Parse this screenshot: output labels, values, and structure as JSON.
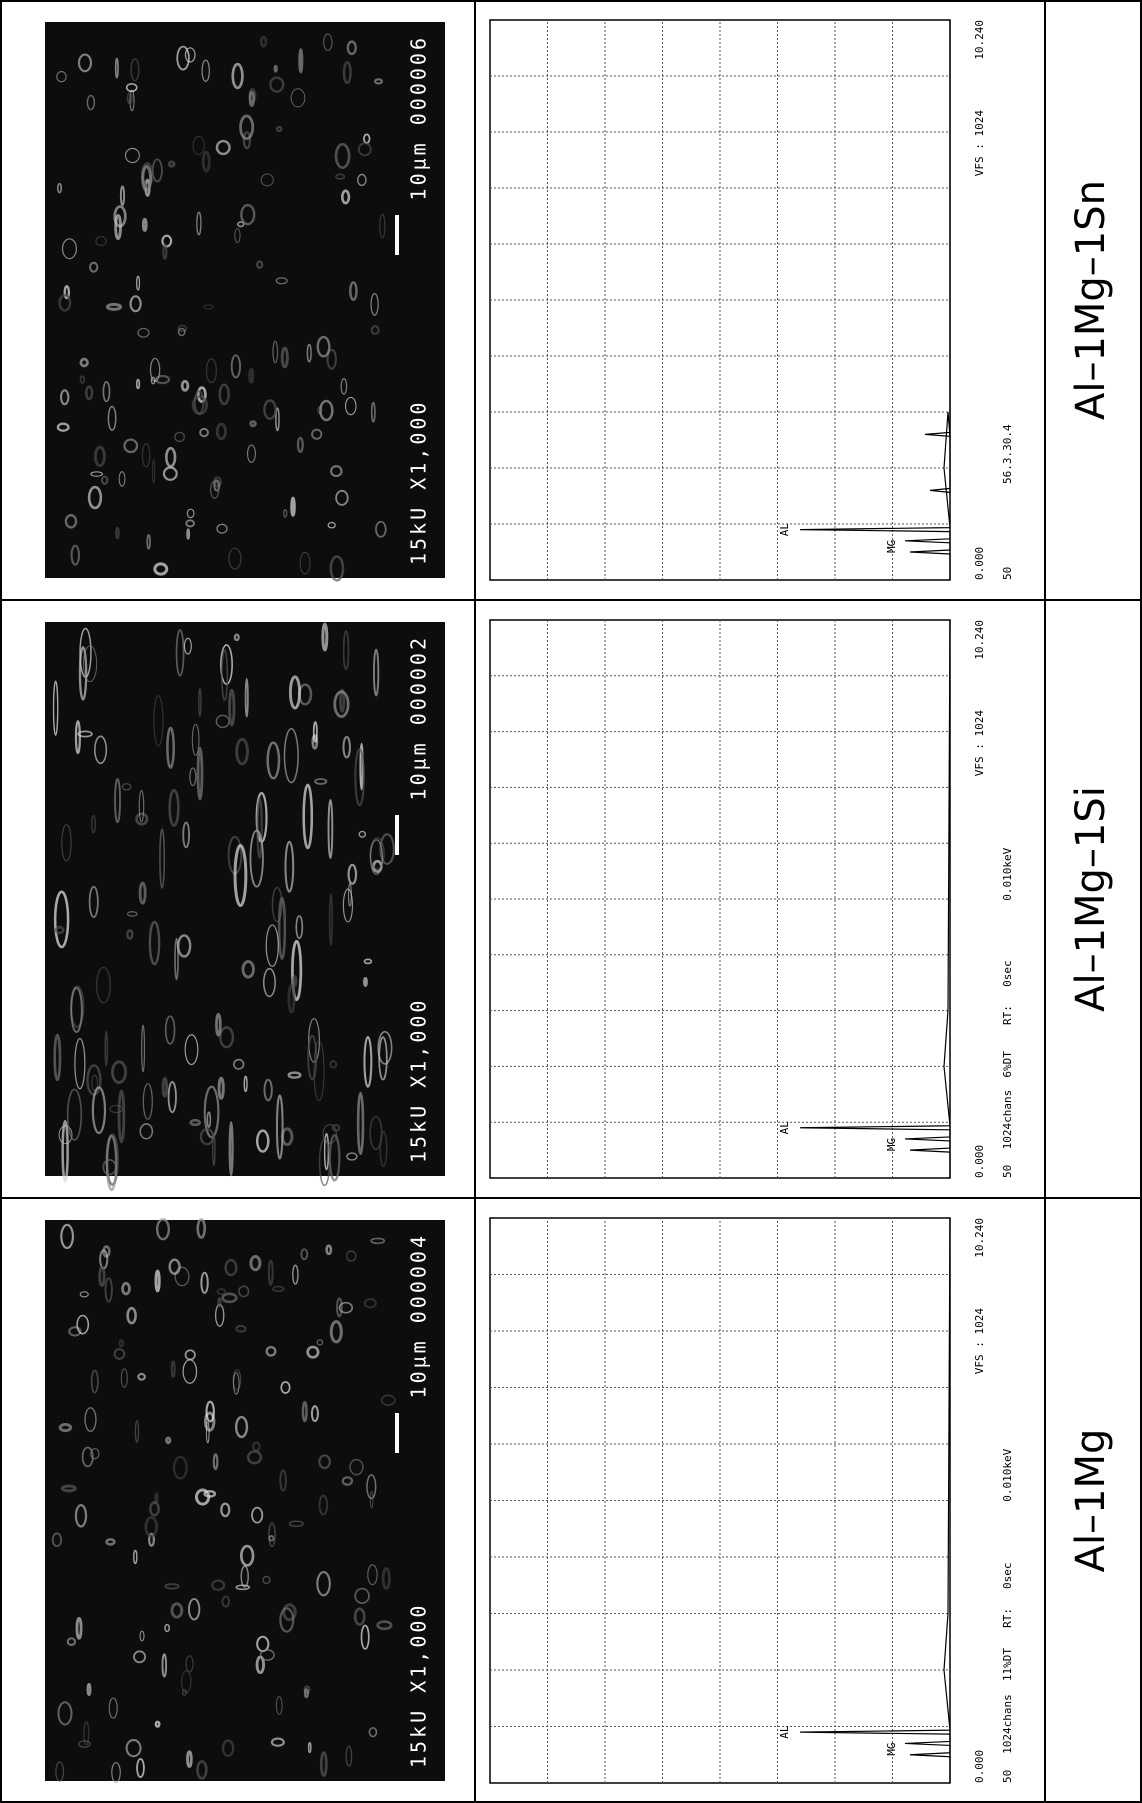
{
  "rows": [
    {
      "label": "Al–1Mg–1Sn",
      "sem": {
        "left": "15kU X1,000",
        "right": "10µm 000006"
      },
      "spectrum": {
        "start": "0.000",
        "end": "10.240",
        "vfs": "VFS : 1024",
        "info": [
          "50",
          "56.3.30.4"
        ],
        "peaks": [
          "AL",
          "MG"
        ]
      }
    },
    {
      "label": "Al–1Mg–1Si",
      "sem": {
        "left": "15kU X1,000",
        "right": "10µm 000002"
      },
      "spectrum": {
        "start": "0.000",
        "end": "10.240",
        "vfs": "VFS : 1024",
        "info": [
          "50",
          "1024chans",
          "6%DT",
          "RT:",
          "0sec",
          "0.010keV"
        ],
        "peaks": [
          "AL",
          "MG"
        ]
      }
    },
    {
      "label": "Al–1Mg",
      "sem": {
        "left": "15kU X1,000",
        "right": "10µm 000004"
      },
      "spectrum": {
        "start": "0.000",
        "end": "10.240",
        "vfs": "VFS : 1024",
        "info": [
          "50",
          "1024chans",
          "11%DT",
          "RT:",
          "0sec",
          "0.010keV"
        ],
        "peaks": [
          "AL",
          "MG"
        ]
      }
    }
  ]
}
